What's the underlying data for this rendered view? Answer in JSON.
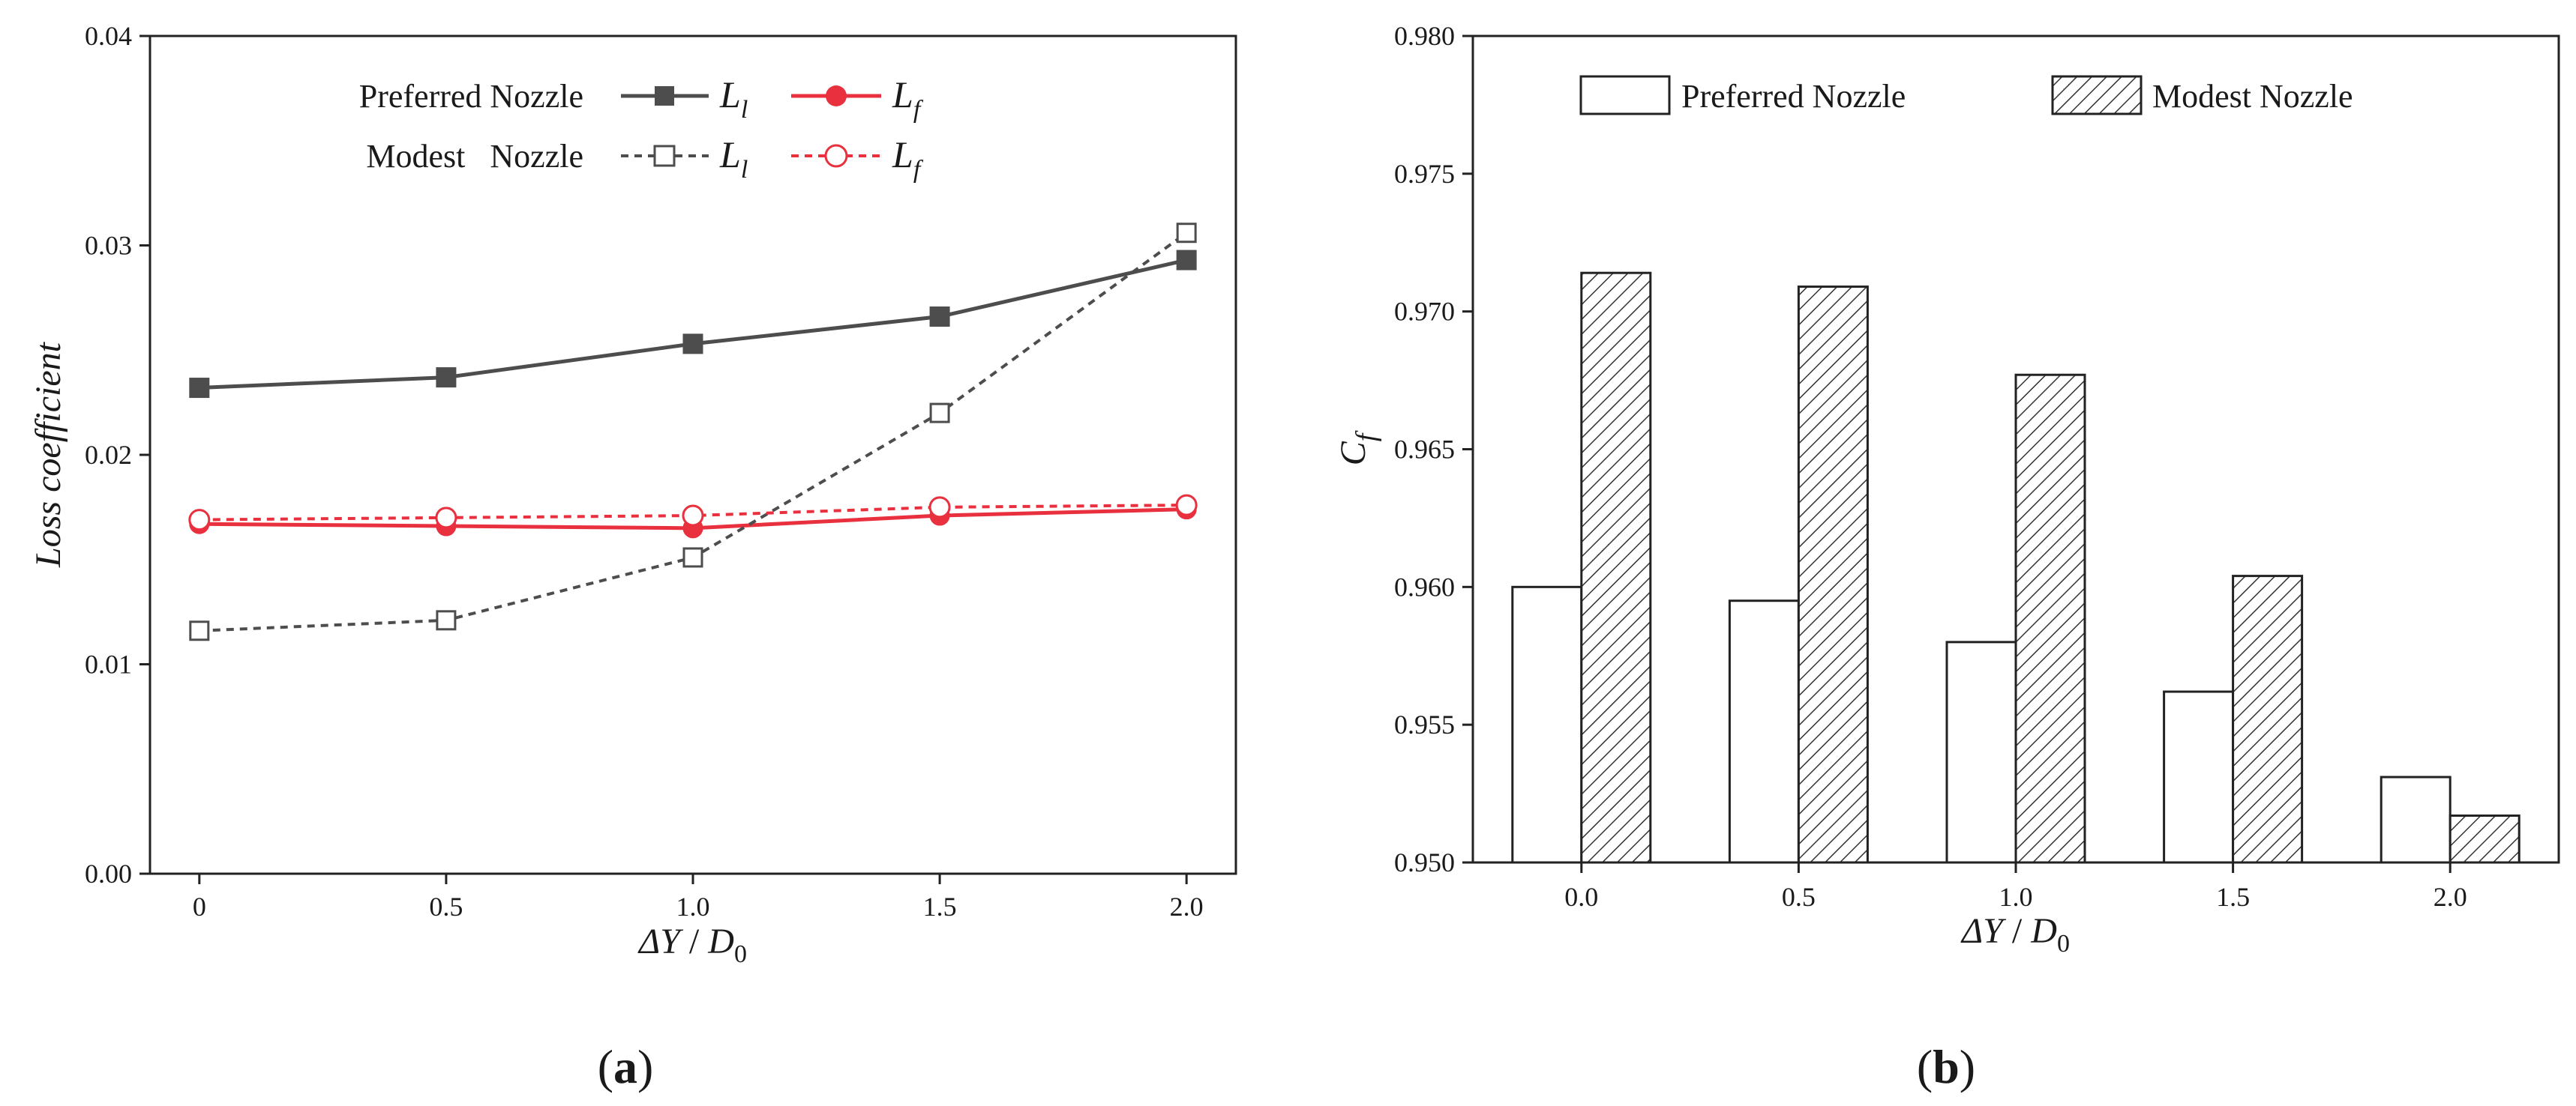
{
  "chart_data": [
    {
      "type": "line",
      "panel_label": "a",
      "ylabel": "Loss coefficient",
      "xlabel": {
        "var": "ΔY",
        "sep": " / ",
        "base": "D",
        "sub": "0"
      },
      "x": [
        0,
        0.5,
        1.0,
        1.5,
        2.0
      ],
      "x_tick_labels": [
        "0",
        "0.5",
        "1.0",
        "1.5",
        "2.0"
      ],
      "xlim": [
        -0.1,
        2.1
      ],
      "ylim": [
        0,
        0.04
      ],
      "y_ticks": [
        0,
        0.01,
        0.02,
        0.03,
        0.04
      ],
      "y_tick_labels": [
        "0.00",
        "0.01",
        "0.02",
        "0.03",
        "0.04"
      ],
      "legend_rows": [
        "Preferred Nozzle",
        "Modest   Nozzle"
      ],
      "series": [
        {
          "name": "Preferred Nozzle L_l",
          "symbol": "L",
          "sub": "l",
          "color": "#4d4d4d",
          "dash": "solid",
          "marker": "square-filled",
          "values": [
            0.0232,
            0.0237,
            0.0253,
            0.0266,
            0.0293
          ]
        },
        {
          "name": "Preferred Nozzle L_f",
          "symbol": "L",
          "sub": "f",
          "color": "#e8303f",
          "dash": "solid",
          "marker": "circle-filled",
          "values": [
            0.0167,
            0.0166,
            0.0165,
            0.0171,
            0.0174
          ]
        },
        {
          "name": "Modest Nozzle L_l",
          "symbol": "L",
          "sub": "l",
          "color": "#4d4d4d",
          "dash": "dashed",
          "marker": "square-open",
          "values": [
            0.0116,
            0.0121,
            0.0151,
            0.022,
            0.0306
          ]
        },
        {
          "name": "Modest Nozzle L_f",
          "symbol": "L",
          "sub": "f",
          "color": "#e8303f",
          "dash": "dashed",
          "marker": "circle-open",
          "values": [
            0.0169,
            0.017,
            0.0171,
            0.0175,
            0.0176
          ]
        }
      ]
    },
    {
      "type": "bar",
      "panel_label": "b",
      "ylabel": {
        "base": "C",
        "sub": "f"
      },
      "xlabel": {
        "var": "ΔY",
        "sep": " / ",
        "base": "D",
        "sub": "0"
      },
      "categories": [
        "0.0",
        "0.5",
        "1.0",
        "1.5",
        "2.0"
      ],
      "ylim": [
        0.95,
        0.98
      ],
      "y_ticks": [
        0.95,
        0.955,
        0.96,
        0.965,
        0.97,
        0.975,
        0.98
      ],
      "y_tick_labels": [
        "0.950",
        "0.955",
        "0.960",
        "0.965",
        "0.970",
        "0.975",
        "0.980"
      ],
      "series": [
        {
          "name": "Preferred Nozzle",
          "fill": "plain",
          "values": [
            0.96,
            0.9595,
            0.958,
            0.9562,
            0.9531
          ]
        },
        {
          "name": "Modest Nozzle",
          "fill": "hatched",
          "values": [
            0.9714,
            0.9709,
            0.9677,
            0.9604,
            0.9517
          ]
        }
      ]
    }
  ]
}
